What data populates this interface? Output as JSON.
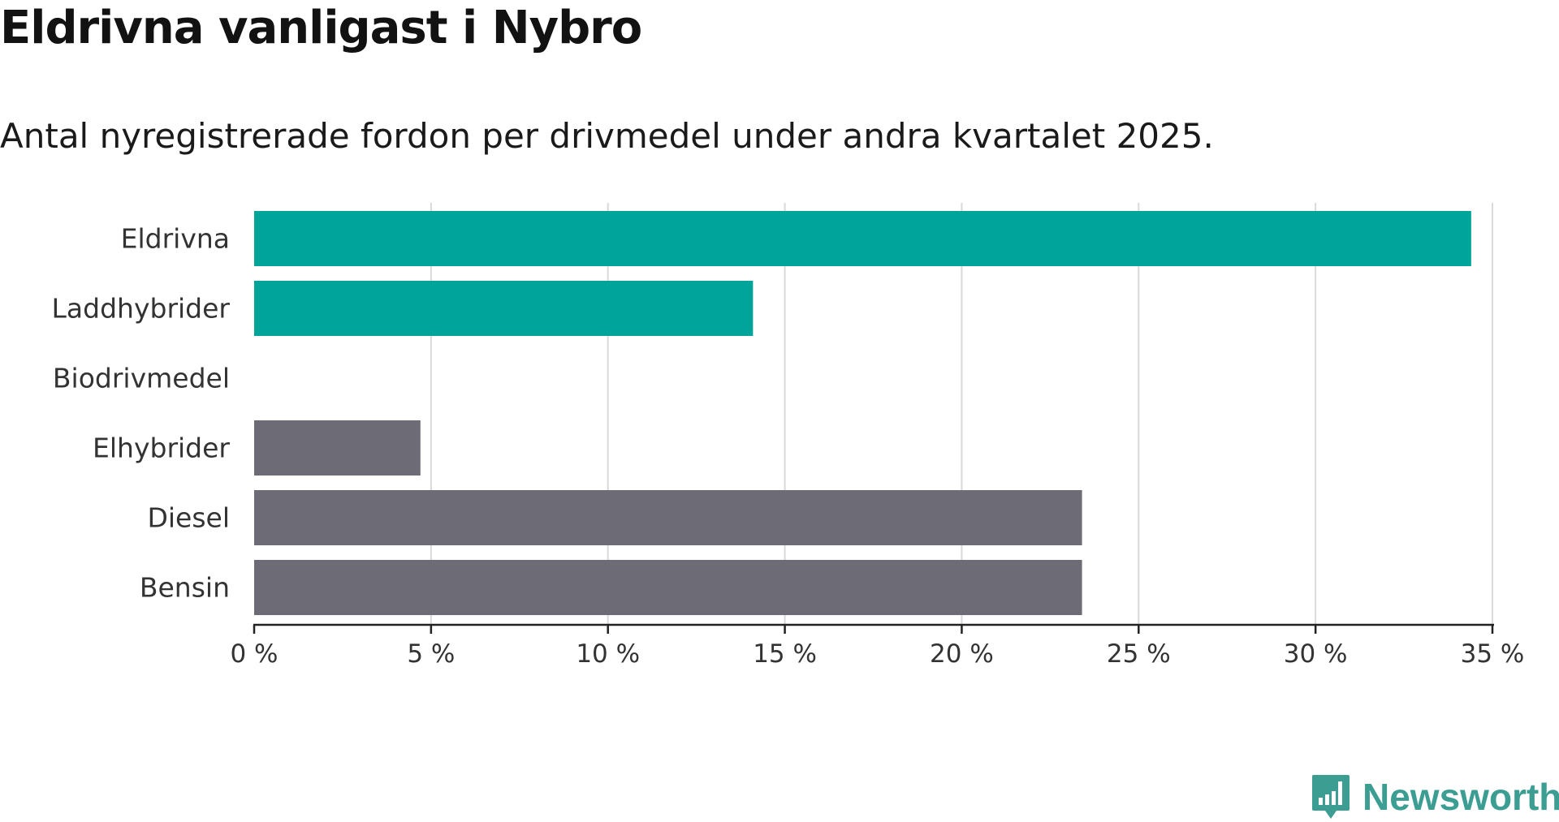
{
  "title": "Eldrivna vanligast i Nybro",
  "subtitle": "Antal nyregistrerade fordon per drivmedel under andra kvartalet 2025.",
  "brand": {
    "name": "Newsworthy",
    "icon": "newsworthy-logo-icon",
    "color": "#3c9d93"
  },
  "chart_data": {
    "type": "bar",
    "orientation": "horizontal",
    "title": "Eldrivna vanligast i Nybro",
    "subtitle": "Antal nyregistrerade fordon per drivmedel under andra kvartalet 2025.",
    "categories": [
      "Eldrivna",
      "Laddhybrider",
      "Biodrivmedel",
      "Elhybrider",
      "Diesel",
      "Bensin"
    ],
    "values": [
      34.4,
      14.1,
      0,
      4.7,
      23.4,
      23.4
    ],
    "colors": [
      "#00a499",
      "#00a499",
      "#00a499",
      "#6d6c76",
      "#6d6c76",
      "#6d6c76"
    ],
    "xlabel": "",
    "ylabel": "",
    "xlim": [
      0,
      35
    ],
    "xticks": [
      0,
      5,
      10,
      15,
      20,
      25,
      30,
      35
    ],
    "xtick_labels": [
      "0 %",
      "5 %",
      "10 %",
      "15 %",
      "20 %",
      "25 %",
      "30 %",
      "35 %"
    ],
    "grid": true,
    "legend": "none"
  }
}
